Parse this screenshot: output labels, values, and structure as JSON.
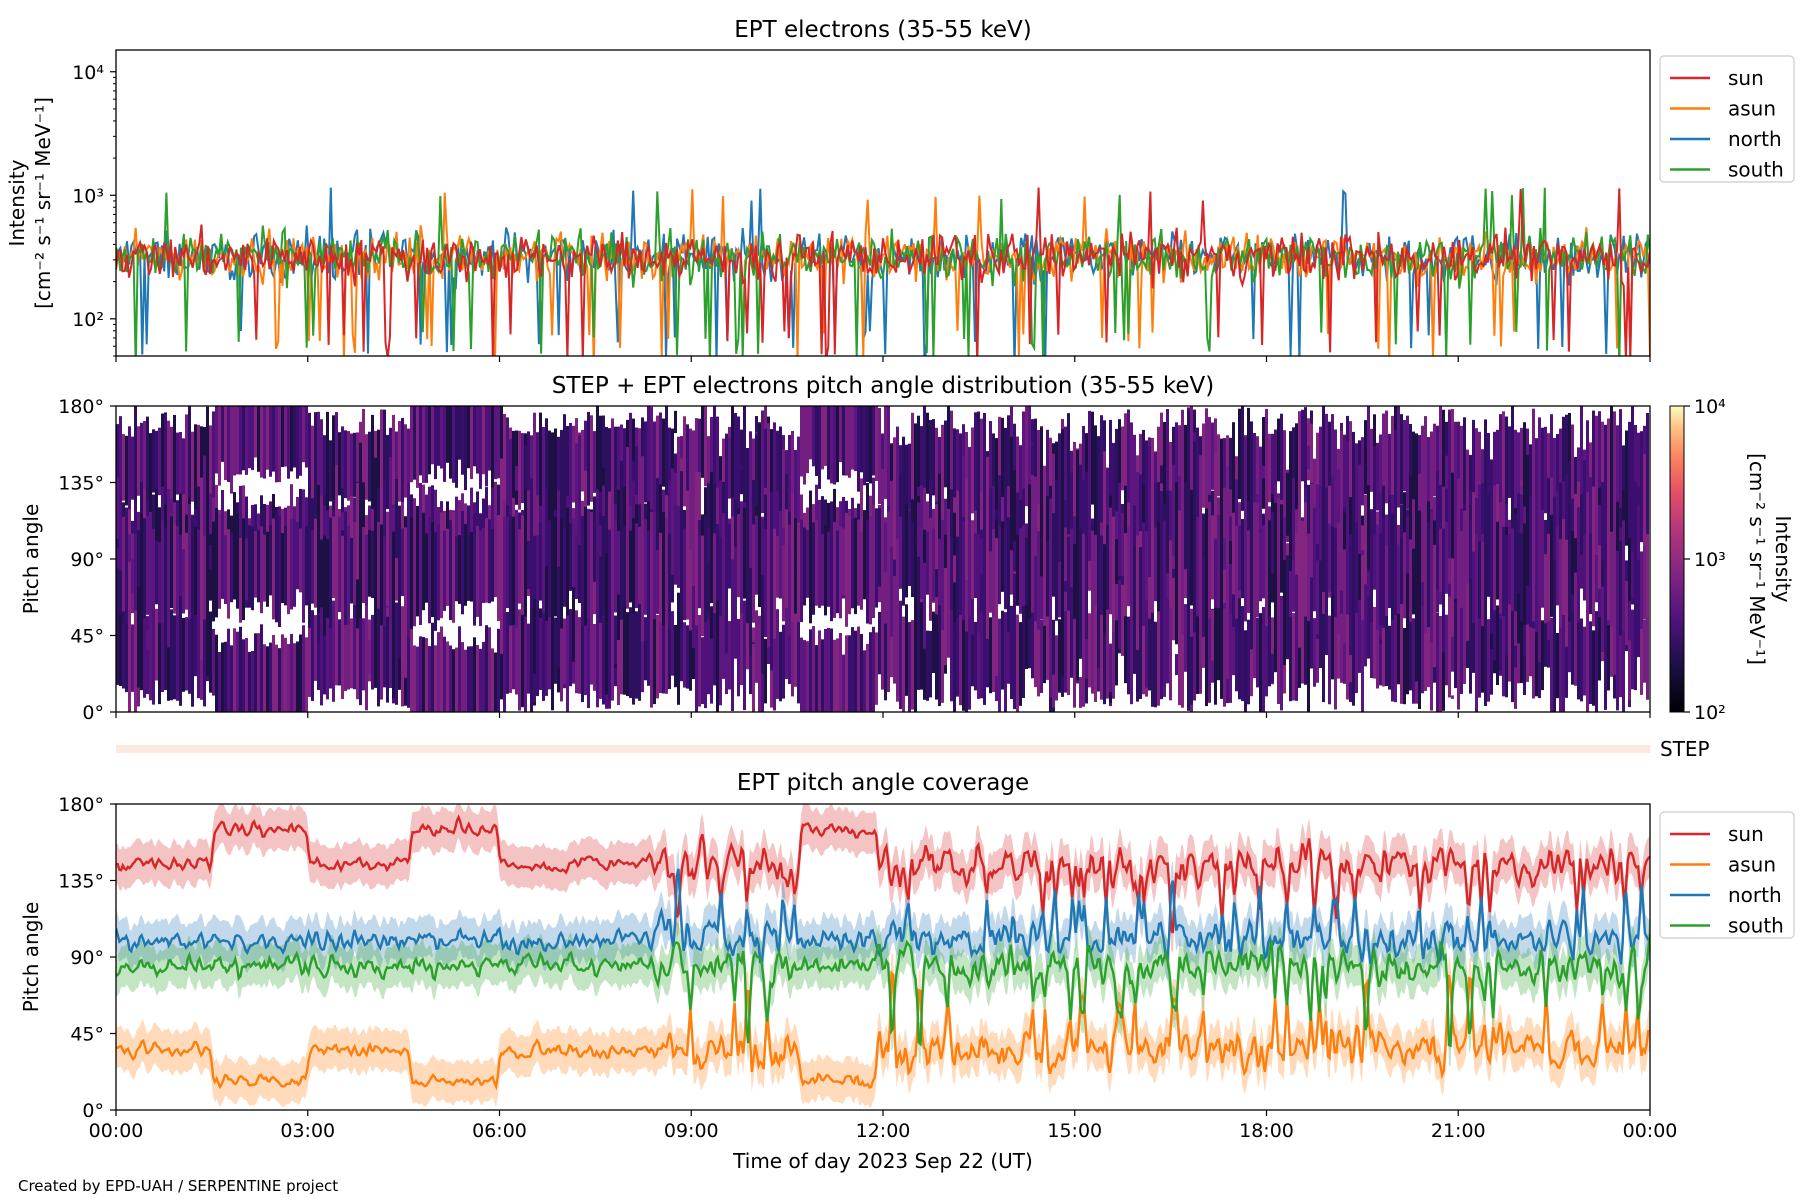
{
  "chart_data": [
    {
      "type": "line",
      "title": "EPT electrons (35-55 keV)",
      "ylabel_line1": "Intensity",
      "ylabel_line2": "[cm⁻² s⁻¹ sr⁻¹ MeV⁻¹]",
      "yscale": "log",
      "ylim": [
        50,
        15000
      ],
      "ytick_labels": [
        "10²",
        "10³",
        "10⁴"
      ],
      "ytick_values": [
        100,
        1000,
        10000
      ],
      "xlim_hours": [
        0,
        24
      ],
      "legend_position": "upper-right-outside",
      "series": [
        {
          "name": "sun",
          "color": "#d62728",
          "typical_range": [
            150,
            600
          ]
        },
        {
          "name": "asun",
          "color": "#ff7f0e",
          "typical_range": [
            150,
            700
          ]
        },
        {
          "name": "north",
          "color": "#1f77b4",
          "typical_range": [
            150,
            700
          ]
        },
        {
          "name": "south",
          "color": "#2ca02c",
          "typical_range": [
            150,
            700
          ]
        }
      ]
    },
    {
      "type": "heatmap",
      "title": "STEP + EPT electrons pitch angle distribution (35-55 keV)",
      "ylabel": "Pitch angle",
      "ylim": [
        0,
        180
      ],
      "ytick_labels": [
        "0°",
        "45°",
        "90°",
        "135°",
        "180°"
      ],
      "ytick_values": [
        0,
        45,
        90,
        135,
        180
      ],
      "colorbar_label_line1": "Intensity",
      "colorbar_label_line2": "[cm⁻² s⁻¹ sr⁻¹ MeV⁻¹]",
      "colorbar_ticks": [
        "10⁴",
        "10³",
        "10²"
      ],
      "colorbar_range": [
        100,
        10000
      ],
      "colorbar_scale": "log"
    },
    {
      "type": "band",
      "label": "STEP"
    },
    {
      "type": "line",
      "title": "EPT pitch angle coverage",
      "ylabel": "Pitch angle",
      "ylim": [
        0,
        180
      ],
      "ytick_labels": [
        "0°",
        "45°",
        "90°",
        "135°",
        "180°"
      ],
      "ytick_values": [
        0,
        45,
        90,
        135,
        180
      ],
      "xlabel": "Time of day 2023 Sep 22 (UT)",
      "xtick_labels": [
        "00:00",
        "03:00",
        "06:00",
        "09:00",
        "12:00",
        "15:00",
        "18:00",
        "21:00",
        "00:00"
      ],
      "xtick_hours": [
        0,
        3,
        6,
        9,
        12,
        15,
        18,
        21,
        24
      ],
      "legend_position": "upper-right-outside",
      "series": [
        {
          "name": "sun",
          "color": "#d62728",
          "approx_center_deg": 145
        },
        {
          "name": "asun",
          "color": "#ff7f0e",
          "approx_center_deg": 30
        },
        {
          "name": "north",
          "color": "#1f77b4",
          "approx_center_deg": 100
        },
        {
          "name": "south",
          "color": "#2ca02c",
          "approx_center_deg": 85
        }
      ]
    }
  ],
  "credit": "Created by EPD-UAH / SERPENTINE project"
}
